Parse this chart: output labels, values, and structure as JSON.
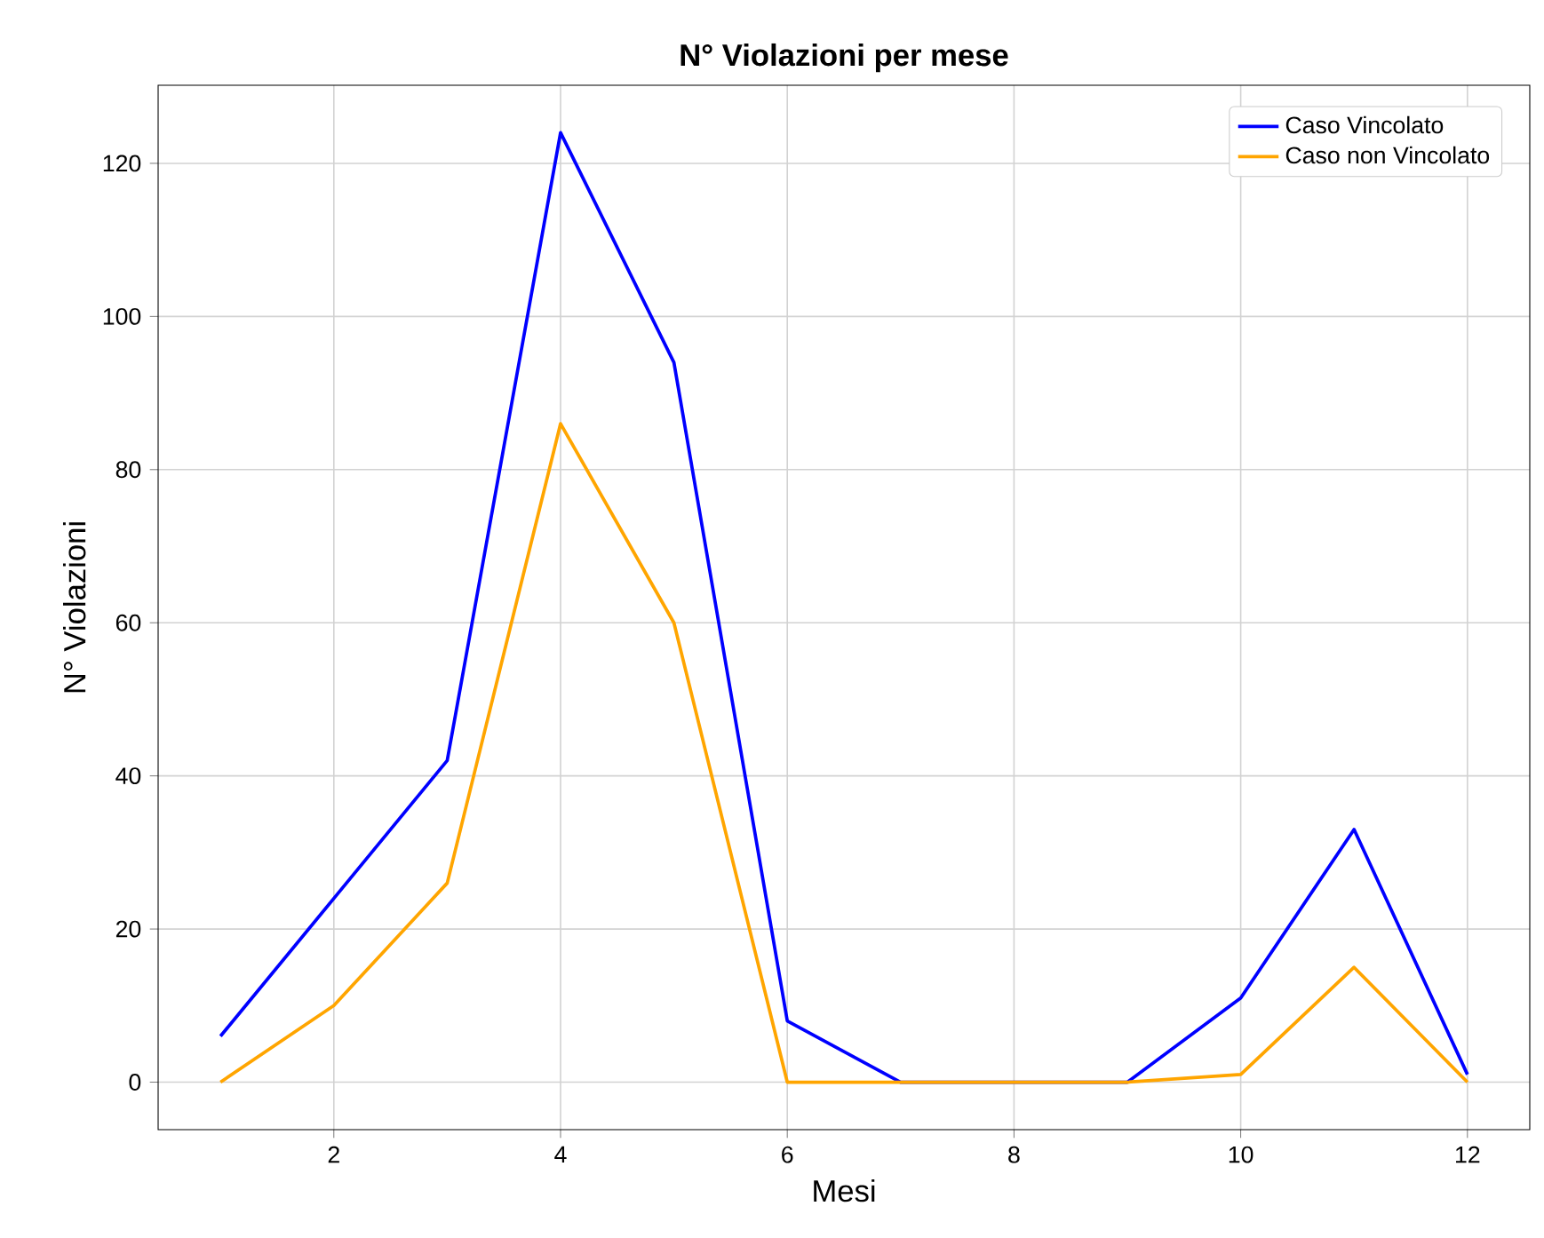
{
  "chart_data": {
    "type": "line",
    "title": "N° Violazioni per mese",
    "xlabel": "Mesi",
    "ylabel": "N° Violazioni",
    "x": [
      1,
      2,
      3,
      4,
      5,
      6,
      7,
      8,
      9,
      10,
      11,
      12
    ],
    "series": [
      {
        "name": "Caso Vincolato",
        "color": "#0000ff",
        "values": [
          6,
          24,
          42,
          124,
          94,
          8,
          0,
          0,
          0,
          11,
          33,
          1
        ]
      },
      {
        "name": "Caso non Vincolato",
        "color": "#ffa500",
        "values": [
          0,
          10,
          26,
          86,
          60,
          0,
          0,
          0,
          0,
          1,
          15,
          0
        ]
      }
    ],
    "xlim": [
      0.45,
      12.55
    ],
    "ylim": [
      -6.2,
      130.2
    ],
    "xticks": [
      2,
      4,
      6,
      8,
      10,
      12
    ],
    "yticks": [
      0,
      20,
      40,
      60,
      80,
      100,
      120
    ],
    "grid": true,
    "legend": "top right",
    "marker": "none",
    "line_style": "solid"
  }
}
